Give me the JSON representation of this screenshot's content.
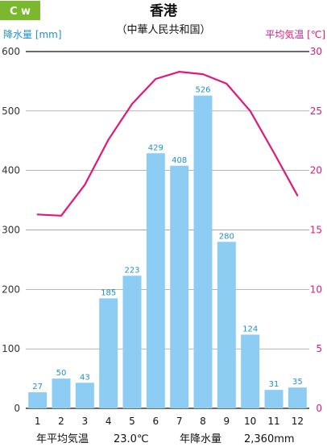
{
  "badge": {
    "text": "C w",
    "color": "#7ab82e"
  },
  "title": "香港",
  "subtitle": "（中華人民共和国）",
  "colors": {
    "bar": "#8dcdf3",
    "bar_label": "#1f8fcf",
    "line": "#e0187c",
    "left_axis": "#1f8fcf",
    "right_axis": "#e0187c"
  },
  "footer": {
    "temp_label": "年平均気温",
    "temp_value": "23.0℃",
    "precip_label": "年降水量",
    "precip_value": "2,360mm"
  },
  "chart_data": {
    "type": "bar+line",
    "categories": [
      "1",
      "2",
      "3",
      "4",
      "5",
      "6",
      "7",
      "8",
      "9",
      "10",
      "11",
      "12"
    ],
    "series": [
      {
        "name": "降水量",
        "type": "bar",
        "axis": "left",
        "values": [
          27,
          50,
          43,
          185,
          223,
          429,
          408,
          526,
          280,
          124,
          31,
          35
        ]
      },
      {
        "name": "平均気温",
        "type": "line",
        "axis": "right",
        "values": [
          16.3,
          16.2,
          18.8,
          22.6,
          25.6,
          27.7,
          28.3,
          28.1,
          27.3,
          25.0,
          21.5,
          17.9
        ]
      }
    ],
    "ylabel_left": "降水量 [mm]",
    "ylabel_right": "平均気温 [℃]",
    "ylim_left": [
      0,
      600
    ],
    "ylim_right": [
      0,
      30
    ],
    "yticks_left": [
      "0",
      "100",
      "200",
      "300",
      "400",
      "500",
      "600"
    ],
    "yticks_right": [
      "0",
      "5",
      "10",
      "15",
      "20",
      "25",
      "30"
    ]
  }
}
